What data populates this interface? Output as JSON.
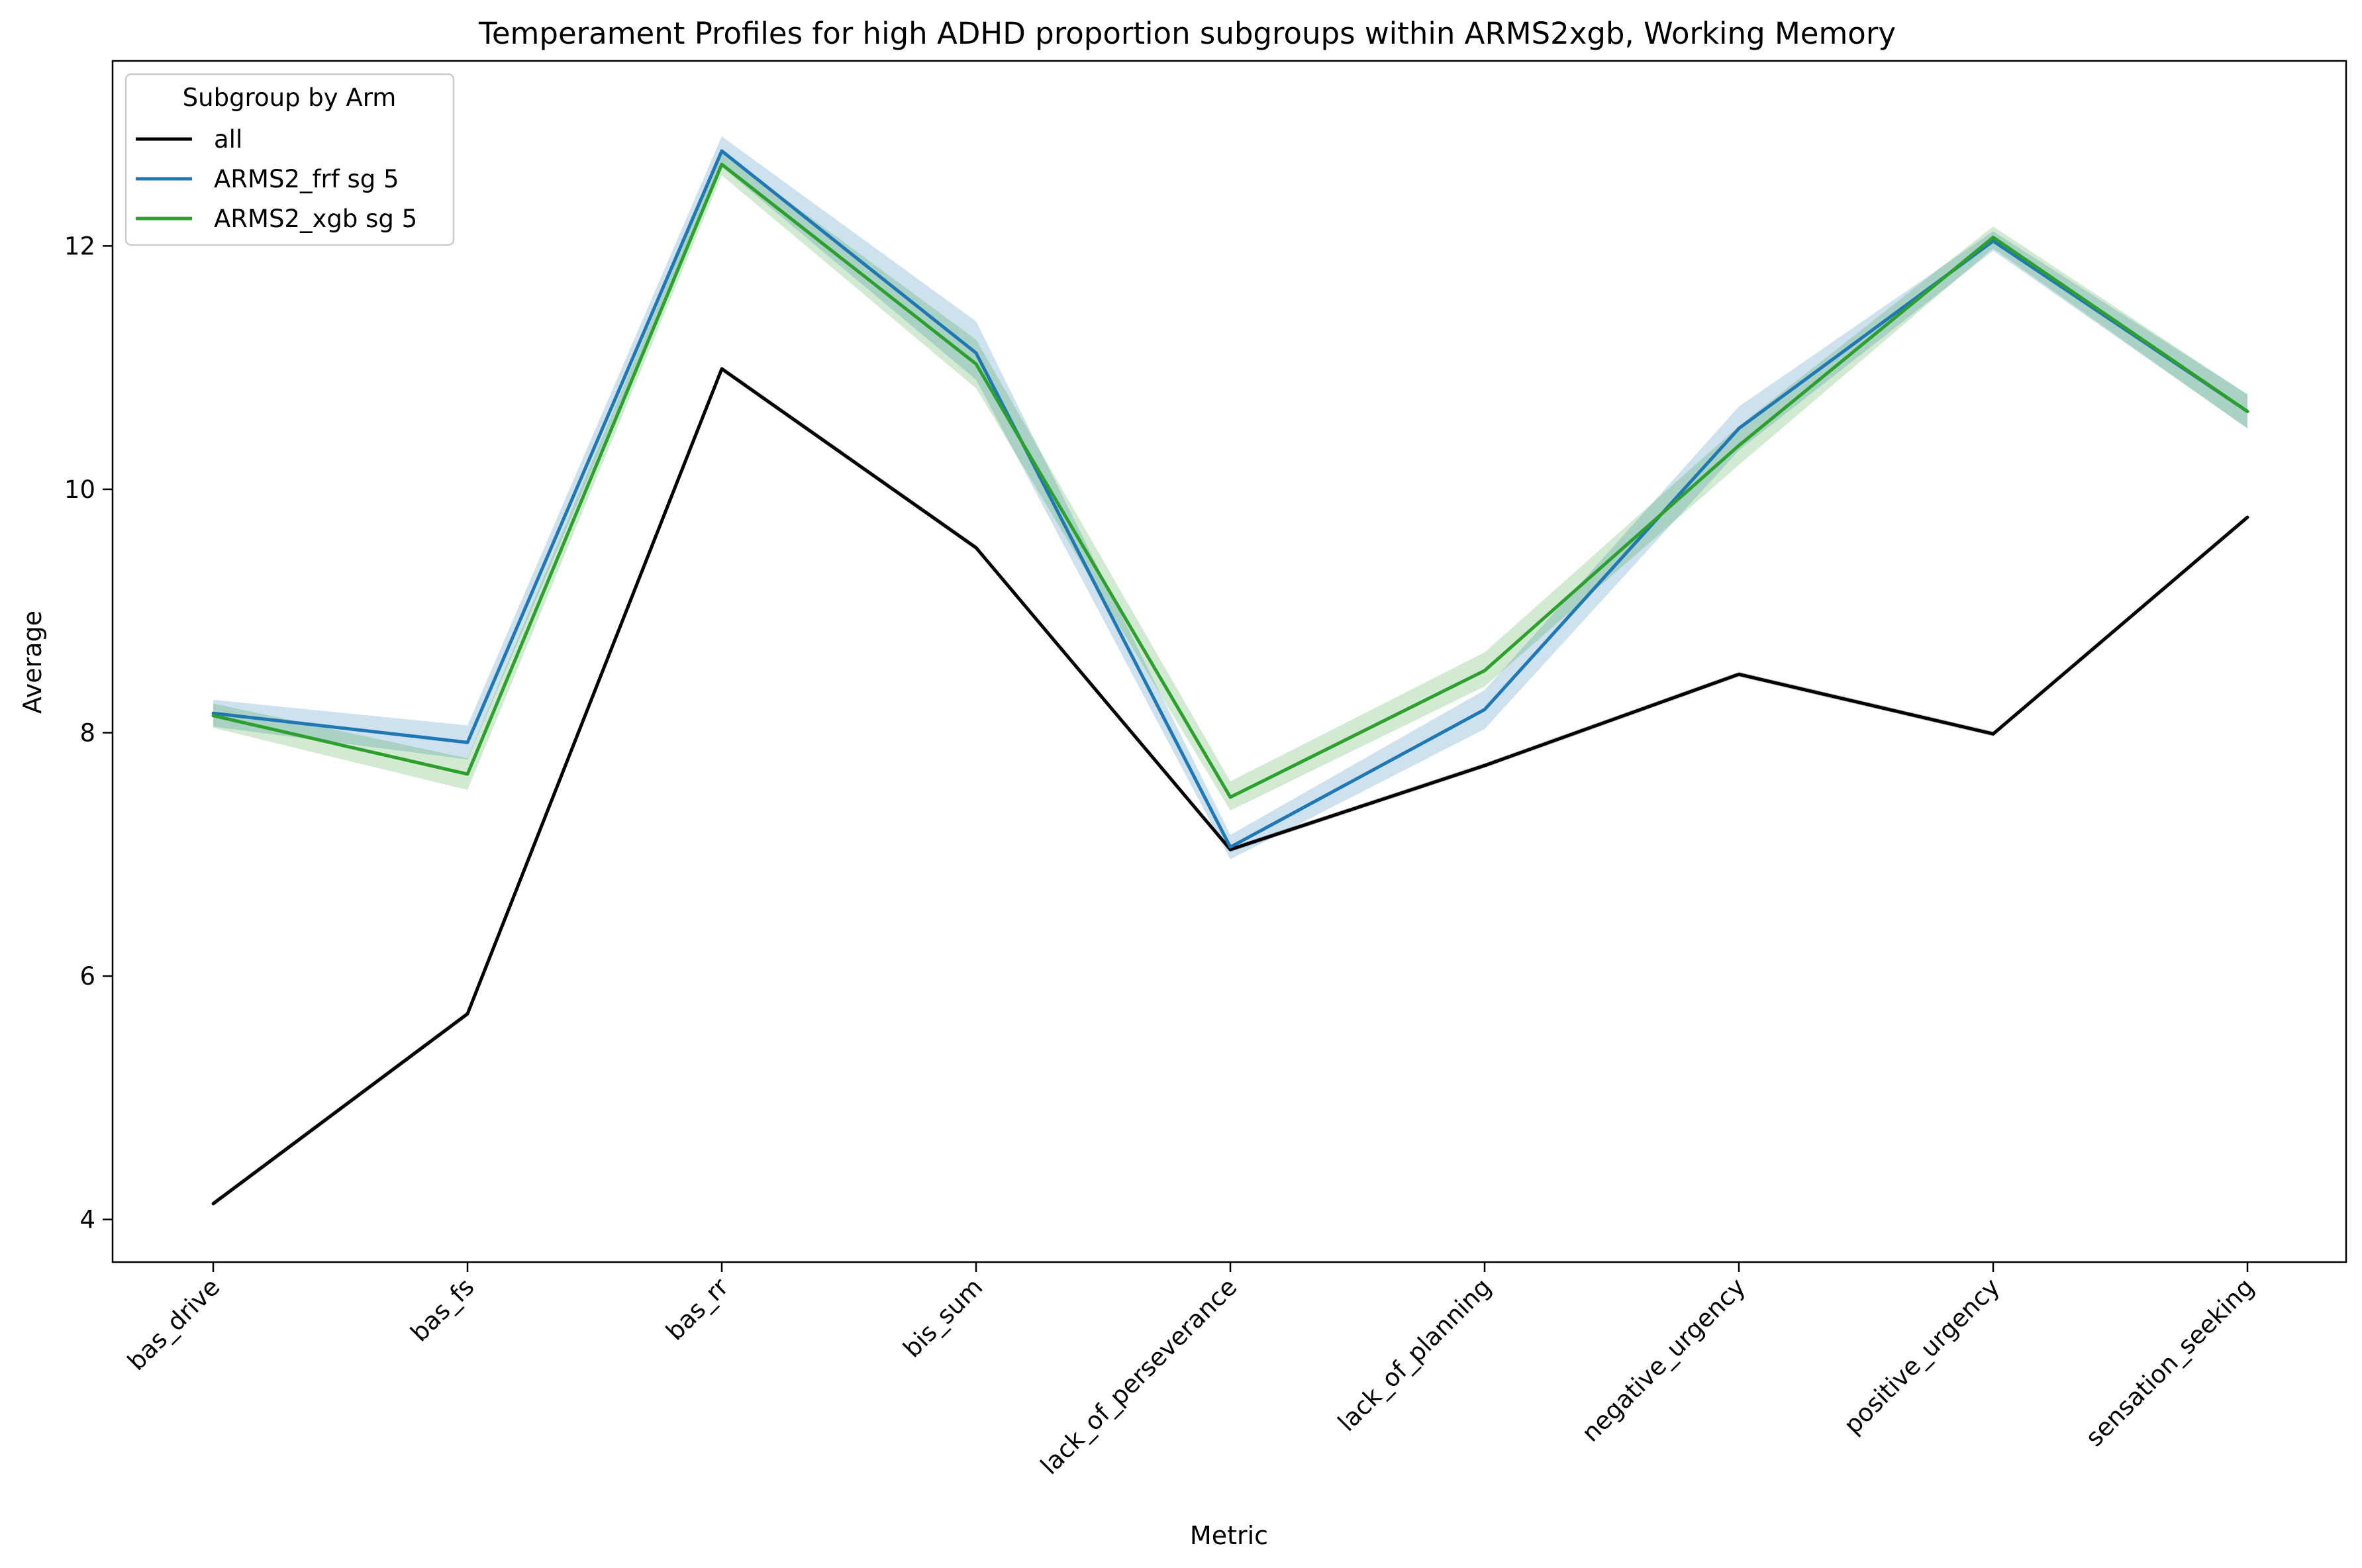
{
  "chart_data": {
    "type": "line",
    "title": "Temperament Profiles for high ADHD proportion subgroups within ARMS2xgb, Working Memory",
    "xlabel": "Metric",
    "ylabel": "Average",
    "categories": [
      "bas_drive",
      "bas_fs",
      "bas_rr",
      "bis_sum",
      "lack_of_perseverance",
      "lack_of_planning",
      "negative_urgency",
      "positive_urgency",
      "sensation_seeking"
    ],
    "ylim": [
      3.65,
      13.52
    ],
    "yticks": [
      4,
      6,
      8,
      10,
      12
    ],
    "legend": {
      "title": "Subgroup by Arm",
      "placement": "top-left"
    },
    "series": [
      {
        "name": "all",
        "color": "#000000",
        "band_color": "#000000",
        "values": [
          4.13,
          5.69,
          10.99,
          9.52,
          7.04,
          7.73,
          8.48,
          7.99,
          9.77
        ],
        "ci_lower": [
          4.11,
          5.67,
          10.97,
          9.5,
          7.02,
          7.71,
          8.46,
          7.97,
          9.75
        ],
        "ci_upper": [
          4.15,
          5.71,
          11.01,
          9.54,
          7.06,
          7.75,
          8.5,
          8.01,
          9.79
        ]
      },
      {
        "name": "ARMS2_frf sg 5",
        "color": "#1f77b4",
        "band_color": "#1f77b4",
        "values": [
          8.16,
          7.92,
          12.78,
          11.12,
          7.06,
          8.19,
          10.5,
          12.04,
          10.64
        ],
        "ci_lower": [
          8.05,
          7.78,
          12.65,
          10.9,
          6.96,
          8.03,
          10.32,
          11.96,
          10.5
        ],
        "ci_upper": [
          8.27,
          8.06,
          12.9,
          11.38,
          7.16,
          8.35,
          10.68,
          12.12,
          10.78
        ]
      },
      {
        "name": "ARMS2_xgb sg 5",
        "color": "#2ca02c",
        "band_color": "#2ca02c",
        "values": [
          8.14,
          7.66,
          12.67,
          11.03,
          7.47,
          8.51,
          10.36,
          12.07,
          10.64
        ],
        "ci_lower": [
          8.04,
          7.53,
          12.58,
          10.83,
          7.36,
          8.38,
          10.2,
          11.98,
          10.5
        ],
        "ci_upper": [
          8.24,
          7.79,
          12.77,
          11.23,
          7.6,
          8.66,
          10.52,
          12.16,
          10.78
        ]
      }
    ]
  }
}
